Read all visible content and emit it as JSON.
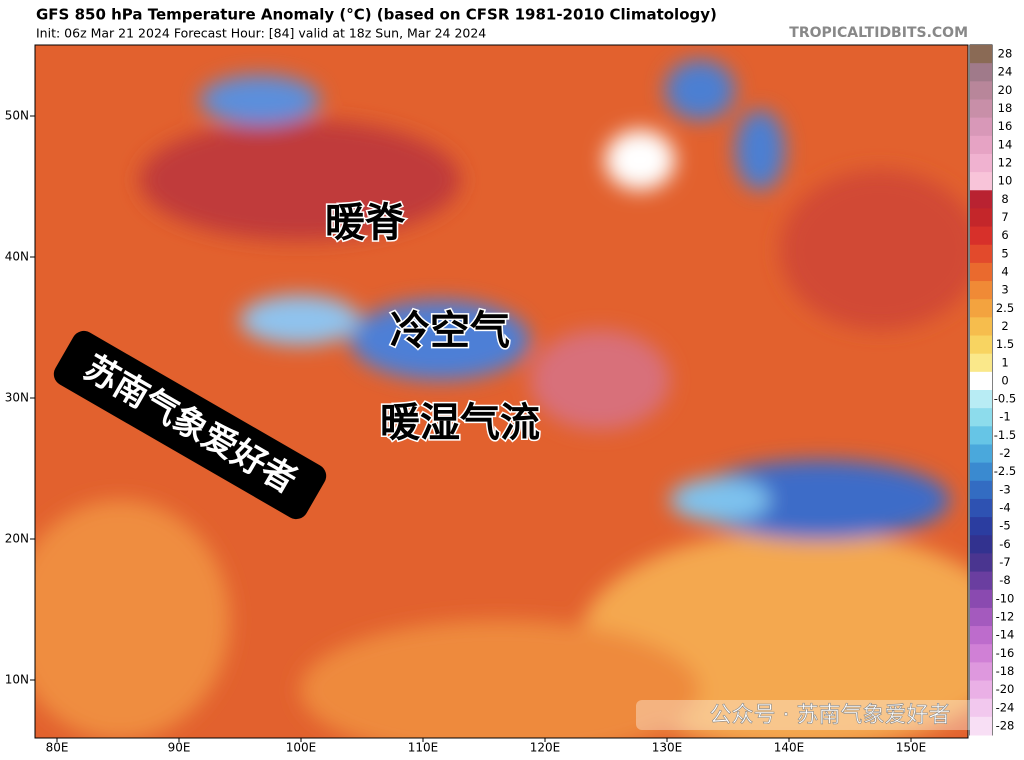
{
  "header": {
    "title": "GFS 850 hPa Temperature Anomaly (°C) (based on CFSR 1981-2010 Climatology)",
    "subtitle": "Init: 06z Mar 21 2024   Forecast Hour: [84]   valid at 18z Sun, Mar 24 2024",
    "brand": "TROPICALTIDBITS.COM"
  },
  "map": {
    "lat_labels": [
      "50N",
      "40N",
      "30N",
      "20N",
      "10N"
    ],
    "lon_labels": [
      "80E",
      "90E",
      "100E",
      "110E",
      "120E",
      "130E",
      "140E",
      "150E"
    ],
    "annotations": [
      "暖脊",
      "冷空气",
      "暖湿气流"
    ],
    "stamp": "苏南气象爱好者",
    "watermark": "公众号 · 苏南气象爱好者"
  },
  "colorbar": {
    "labels": [
      "28",
      "24",
      "20",
      "18",
      "16",
      "14",
      "12",
      "10",
      "8",
      "7",
      "6",
      "5",
      "4",
      "3",
      "2.5",
      "2",
      "1.5",
      "1",
      "0",
      "-0.5",
      "-1",
      "-1.5",
      "-2",
      "-2.5",
      "-3",
      "-4",
      "-5",
      "-6",
      "-7",
      "-8",
      "-10",
      "-12",
      "-14",
      "-16",
      "-18",
      "-20",
      "-24",
      "-28"
    ]
  }
}
